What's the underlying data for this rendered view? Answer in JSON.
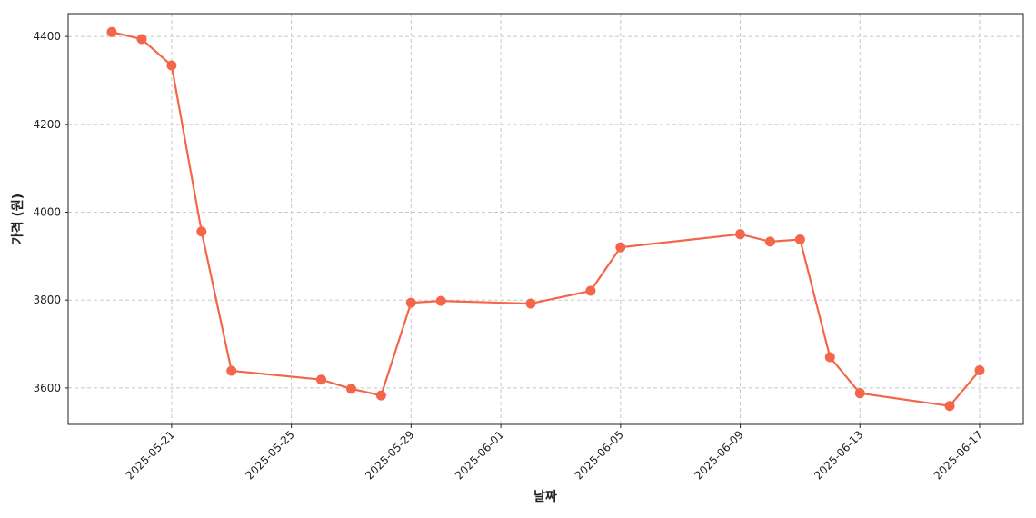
{
  "chart_data": {
    "type": "line",
    "x_label": "날짜",
    "y_label": "가격 (원)",
    "x": [
      "2025-05-19",
      "2025-05-20",
      "2025-05-21",
      "2025-05-22",
      "2025-05-23",
      "2025-05-26",
      "2025-05-27",
      "2025-05-28",
      "2025-05-29",
      "2025-05-30",
      "2025-06-02",
      "2025-06-04",
      "2025-06-05",
      "2025-06-09",
      "2025-06-10",
      "2025-06-11",
      "2025-06-12",
      "2025-06-13",
      "2025-06-16",
      "2025-06-17"
    ],
    "series": [
      {
        "name": "가격",
        "color": "#f4664a",
        "values": [
          4410,
          4394,
          4334,
          3956,
          3639,
          3619,
          3598,
          3583,
          3794,
          3798,
          3792,
          3821,
          3920,
          3950,
          3933,
          3938,
          3670,
          3588,
          3559,
          3640
        ]
      }
    ],
    "xlim": [
      "2025-05-17T13:00",
      "2025-06-18T11:00"
    ],
    "xticks": [
      "2025-05-21",
      "2025-05-25",
      "2025-05-29",
      "2025-06-01",
      "2025-06-05",
      "2025-06-09",
      "2025-06-13",
      "2025-06-17"
    ],
    "ylim": [
      3517,
      4452
    ],
    "yticks": [
      3600,
      3800,
      4000,
      4200,
      4400
    ],
    "grid": true
  }
}
